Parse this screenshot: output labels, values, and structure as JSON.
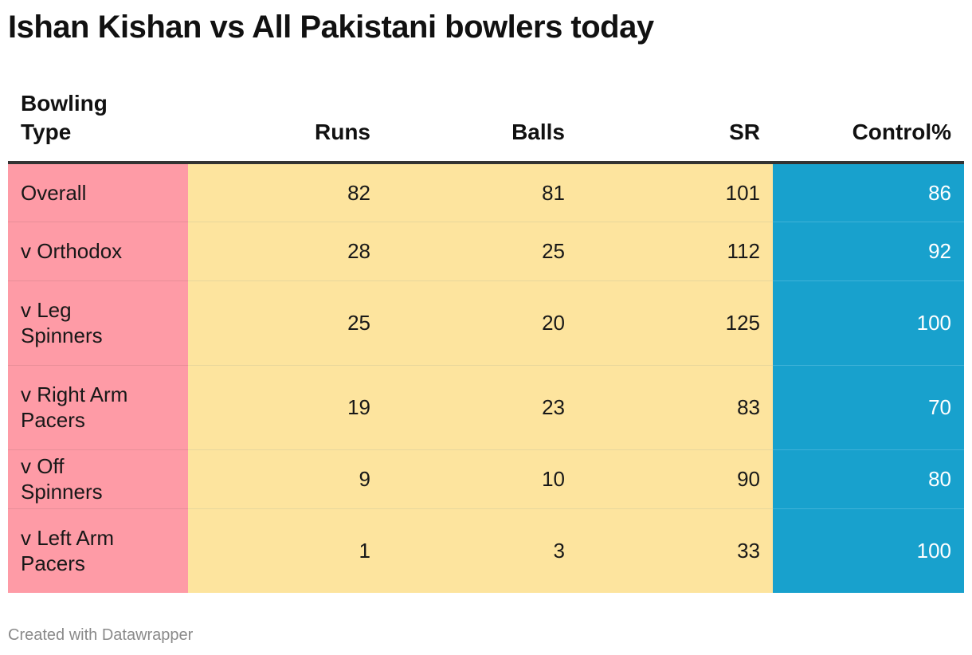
{
  "title": "Ishan Kishan vs All Pakistani bowlers today",
  "footer": "Created with Datawrapper",
  "colors": {
    "category_column": "#fe9ba6",
    "middle_columns": "#fde49e",
    "control_column": "#18a1cd",
    "control_text": "#ffffff"
  },
  "chart_data": {
    "type": "table",
    "title": "Ishan Kishan vs All Pakistani bowlers today",
    "columns": [
      "Bowling Type",
      "Runs",
      "Balls",
      "SR",
      "Control%"
    ],
    "rows": [
      [
        "Overall",
        "82",
        "81",
        "101",
        "86"
      ],
      [
        "v Orthodox",
        "28",
        "25",
        "112",
        "92"
      ],
      [
        "v Leg Spinners",
        "25",
        "20",
        "125",
        "100"
      ],
      [
        "v Right Arm Pacers",
        "19",
        "23",
        "83",
        "70"
      ],
      [
        "v Off Spinners",
        "9",
        "10",
        "90",
        "80"
      ],
      [
        "v Left Arm Pacers",
        "1",
        "3",
        "33",
        "100"
      ]
    ]
  }
}
